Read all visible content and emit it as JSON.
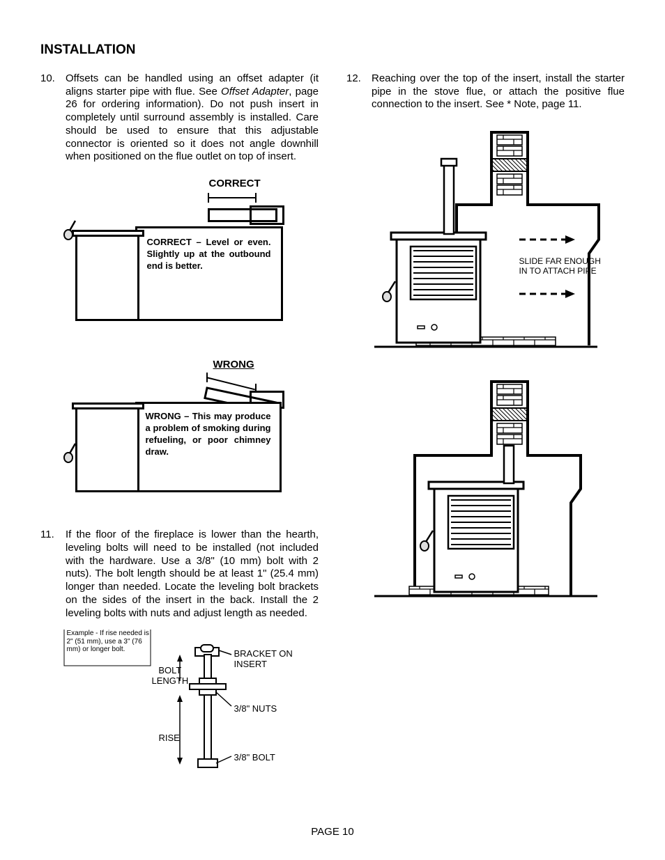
{
  "section_title": "INSTALLATION",
  "items": {
    "i10": {
      "num": "10.",
      "text_a": "Offsets can be handled using an offset adapter (it aligns starter pipe with flue. See ",
      "text_ital": "Offset Adapter",
      "text_b": ", page 26 for ordering information). Do not push insert in completely until surround assembly is installed. Care should be used to ensure that this adjustable connector is oriented so it does not angle downhill when positioned on the flue outlet on top of insert."
    },
    "i11": {
      "num": "11.",
      "text": "If the floor of the fireplace is lower than the hearth, leveling bolts will need to be installed (not included with the hardware. Use a 3/8\" (10 mm) bolt with 2 nuts). The bolt length should be at least 1\" (25.4 mm) longer than needed. Locate the leveling bolt brackets on the sides of the insert in the back. Install the 2 leveling bolts with nuts and adjust length as needed."
    },
    "i12": {
      "num": "12.",
      "text": "Reaching over the top of the insert, install the starter pipe in the stove flue, or attach the positive flue connection to the insert. See * Note, page 11."
    }
  },
  "correct": {
    "label": "CORRECT",
    "caption": "CORRECT – Level or even. Slightly up at the outbound end is better."
  },
  "wrong": {
    "label": "WRONG",
    "caption": "WRONG – This may produce a problem of smoking during refueling, or poor chimney draw."
  },
  "bolt": {
    "example": "Example - If rise needed is 2\" (51 mm), use a 3\" (76 mm) or longer bolt.",
    "bolt_length": "BOLT\nLENGTH",
    "rise": "RISE",
    "bracket": "BRACKET ON\nINSERT",
    "nuts": "3/8\" NUTS",
    "boltlbl": "3/8\" BOLT"
  },
  "fireplace": {
    "slide": "SLIDE FAR ENOUGH\nIN TO ATTACH PIPE"
  },
  "footer": "PAGE 10"
}
